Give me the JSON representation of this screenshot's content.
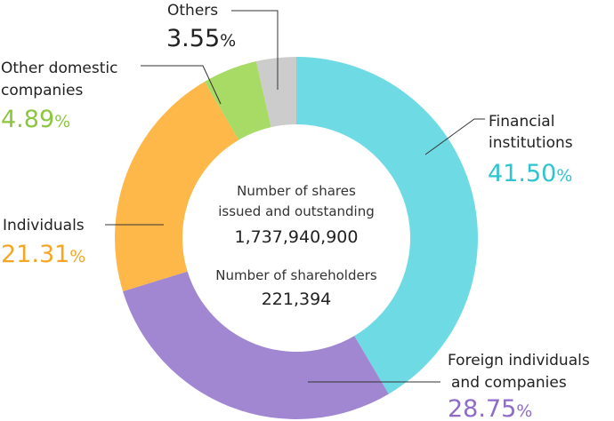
{
  "chart_data": {
    "type": "pie",
    "donut": true,
    "slices": [
      {
        "name": "Financial institutions",
        "value": 41.5,
        "value_text": "41.50",
        "color": "#6edbe4",
        "label_color": "#2ec5d1"
      },
      {
        "name": "Foreign individuals and companies",
        "value": 28.75,
        "value_text": "28.75",
        "color": "#a187d2",
        "label_color": "#8e6cc8"
      },
      {
        "name": "Individuals",
        "value": 21.31,
        "value_text": "21.31",
        "color": "#feb84a",
        "label_color": "#f5a623"
      },
      {
        "name": "Other domestic companies",
        "value": 4.89,
        "value_text": "4.89",
        "color": "#a8da66",
        "label_color": "#8cc63f"
      },
      {
        "name": "Others",
        "value": 3.55,
        "value_text": "3.55",
        "color": "#cccccc",
        "label_color": "#222222"
      }
    ],
    "percent_sign": "%",
    "labels": {
      "financial": [
        "Financial",
        "institutions"
      ],
      "foreign": [
        "Foreign individuals",
        "and companies"
      ],
      "individuals": [
        "Individuals"
      ],
      "other_domestic": [
        "Other domestic",
        "companies"
      ],
      "others": [
        "Others"
      ]
    },
    "center": {
      "shares_label_line1": "Number of shares",
      "shares_label_line2": "issued and outstanding",
      "shares_value": "1,737,940,900",
      "holders_label": "Number of shareholders",
      "holders_value": "221,394"
    }
  }
}
